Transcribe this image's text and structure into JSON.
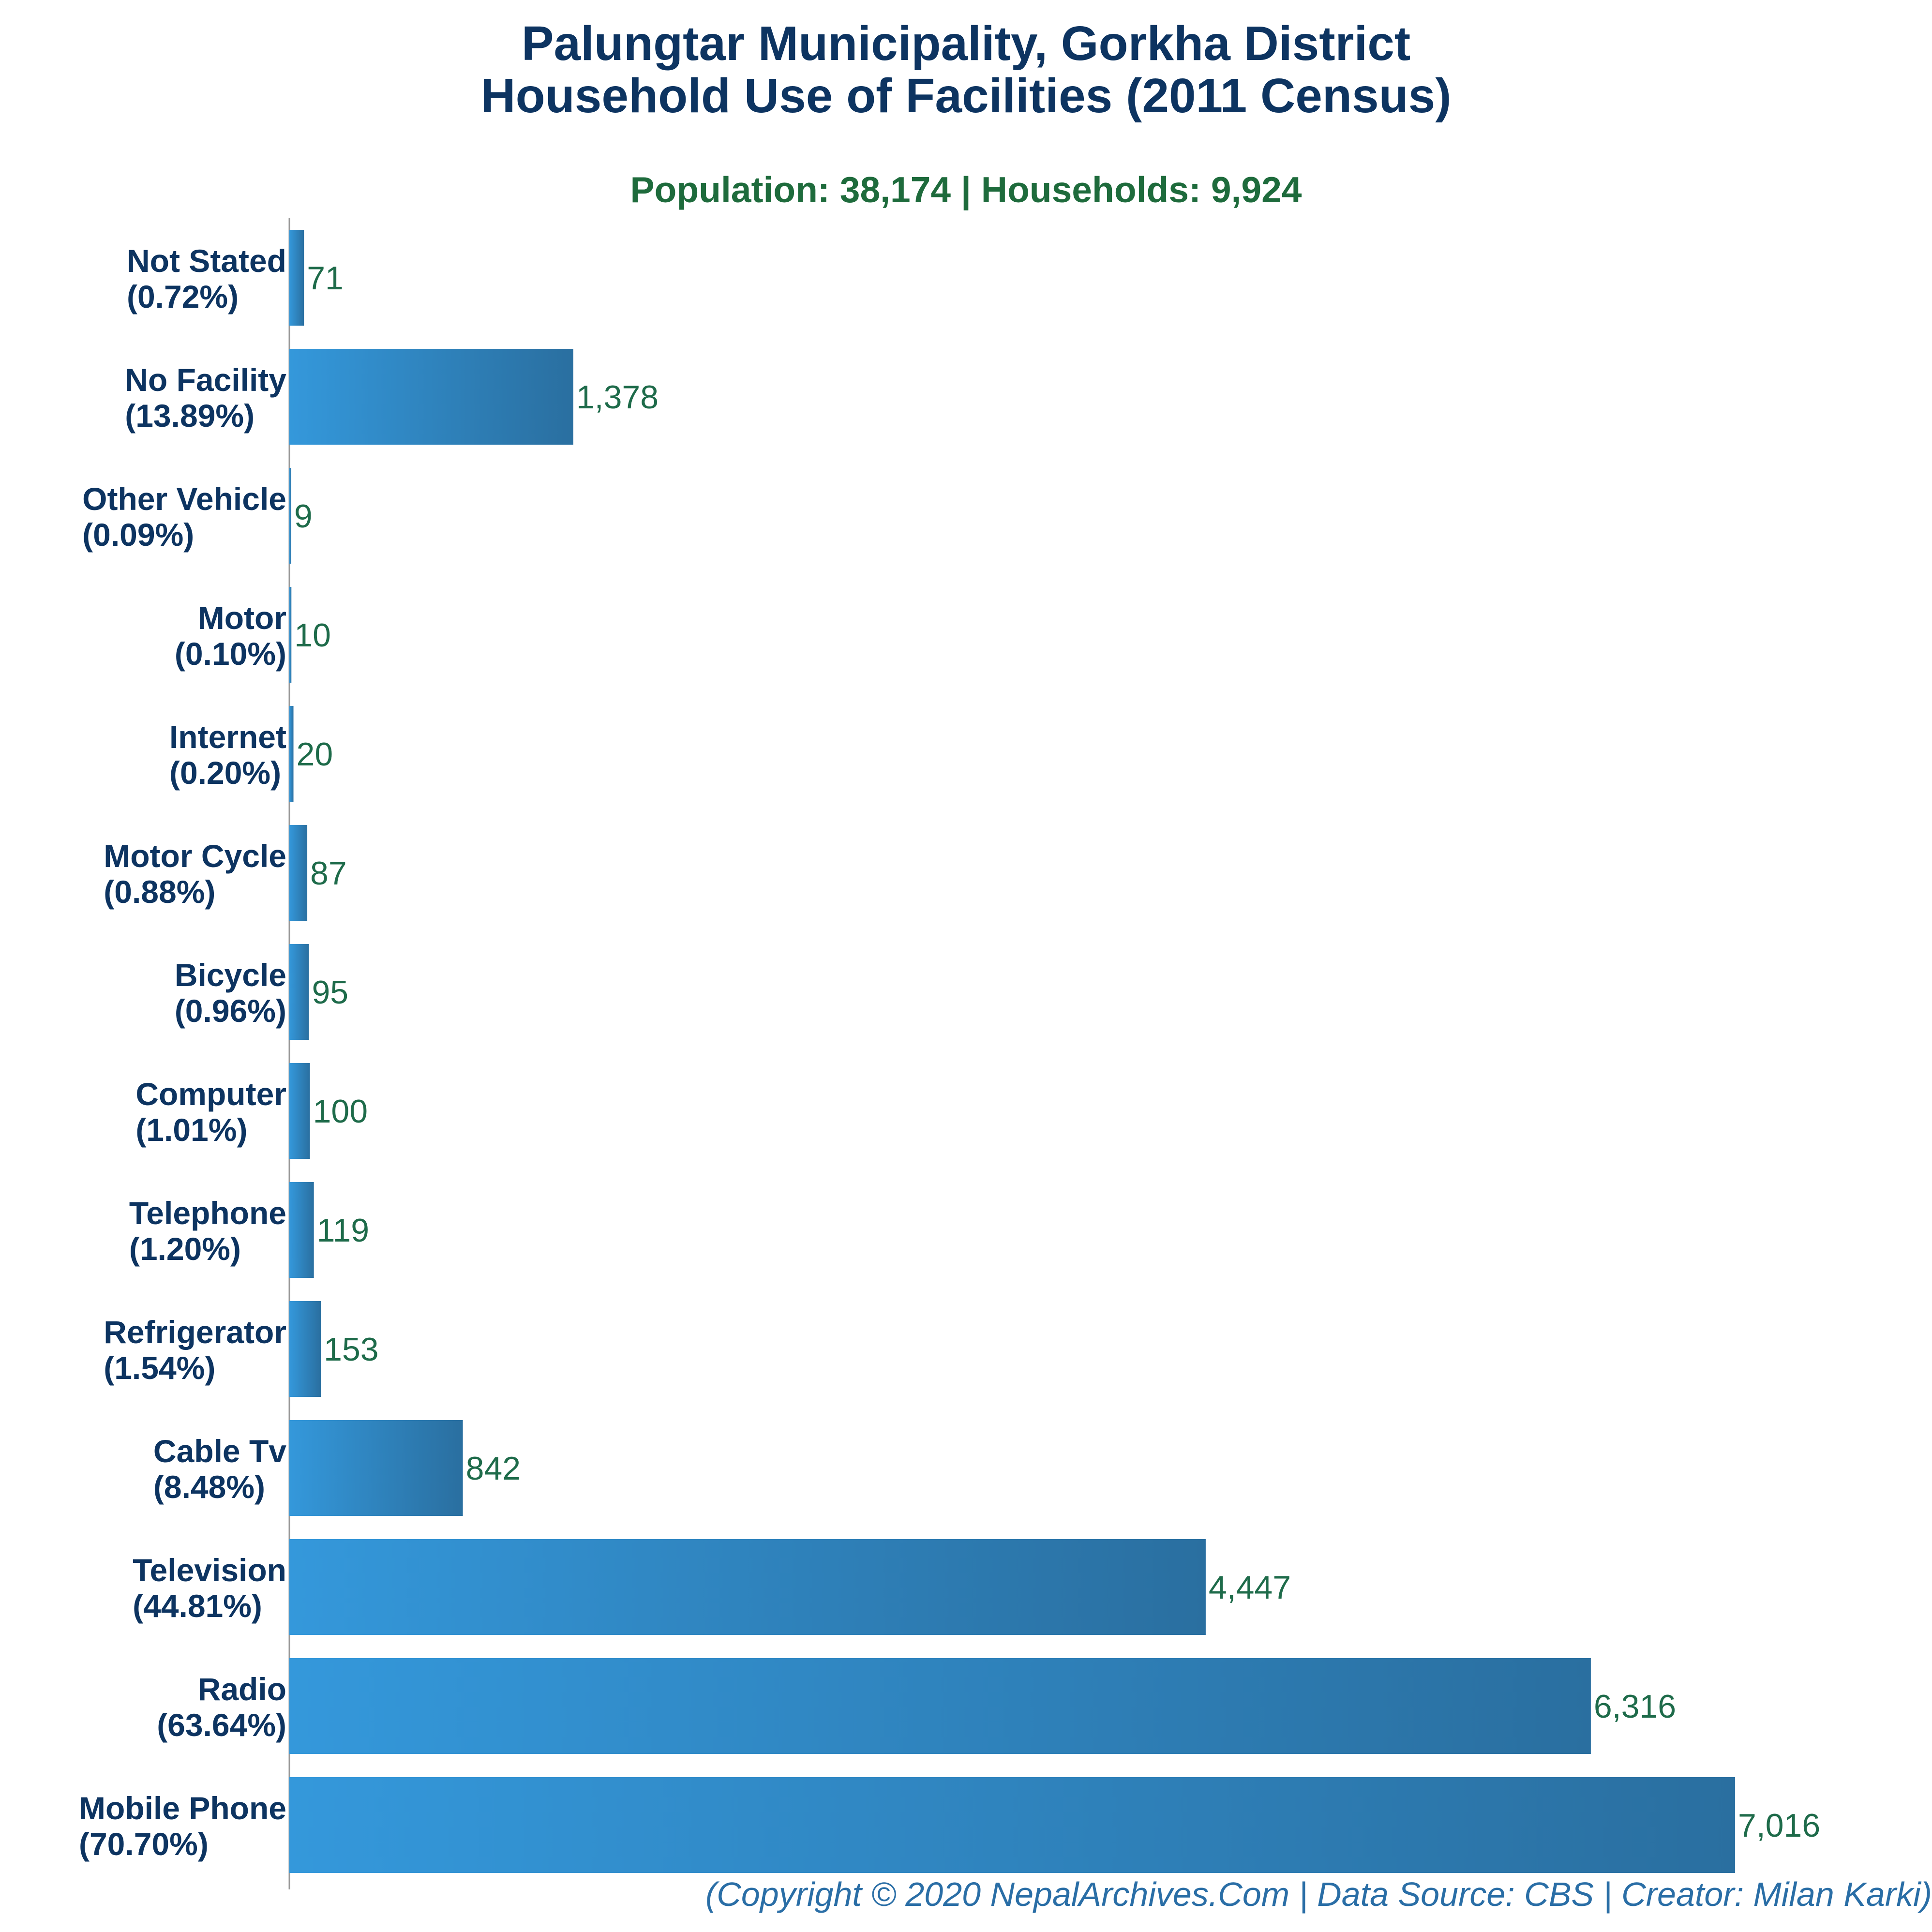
{
  "title_line_1": "Palungtar Municipality, Gorkha District",
  "title_line_2": "Household Use of Facilities (2011 Census)",
  "subtitle": "Population: 38,174 | Households: 9,924",
  "footer": "(Copyright © 2020 NepalArchives.Com | Data Source: CBS | Creator: Milan Karki)",
  "colors": {
    "title": "#0d3461",
    "subtitle": "#1e6b3c",
    "bar_start": "#3498db",
    "bar_end": "#2a6fa0",
    "value_label": "#1e6b4a",
    "category_label": "#0d3461",
    "footer": "#2a6ea6"
  },
  "chart_data": {
    "type": "bar",
    "orientation": "horizontal",
    "xlabel": "",
    "ylabel": "",
    "grid": false,
    "categories": [
      {
        "name": "Not Stated",
        "pct": "(0.72%)"
      },
      {
        "name": "No Facility",
        "pct": "(13.89%)"
      },
      {
        "name": "Other Vehicle",
        "pct": "(0.09%)"
      },
      {
        "name": "Motor",
        "pct": "(0.10%)"
      },
      {
        "name": "Internet",
        "pct": "(0.20%)"
      },
      {
        "name": "Motor Cycle",
        "pct": "(0.88%)"
      },
      {
        "name": "Bicycle",
        "pct": "(0.96%)"
      },
      {
        "name": "Computer",
        "pct": "(1.01%)"
      },
      {
        "name": "Telephone",
        "pct": "(1.20%)"
      },
      {
        "name": "Refrigerator",
        "pct": "(1.54%)"
      },
      {
        "name": "Cable Tv",
        "pct": "(8.48%)"
      },
      {
        "name": "Television",
        "pct": "(44.81%)"
      },
      {
        "name": "Radio",
        "pct": "(63.64%)"
      },
      {
        "name": "Mobile Phone",
        "pct": "(70.70%)"
      }
    ],
    "values": [
      71,
      1378,
      9,
      10,
      20,
      87,
      95,
      100,
      119,
      153,
      842,
      4447,
      6316,
      7016
    ],
    "value_labels": [
      "71",
      "1,378",
      "9",
      "10",
      "20",
      "87",
      "95",
      "100",
      "119",
      "153",
      "842",
      "4,447",
      "6,316",
      "7,016"
    ]
  }
}
